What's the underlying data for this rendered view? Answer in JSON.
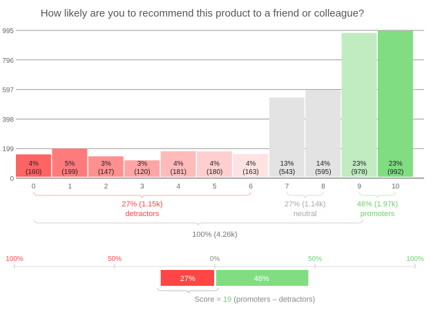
{
  "chart_data": {
    "type": "bar",
    "title": "How likely are you to recommend this product to a friend or colleague?",
    "categories": [
      "0",
      "1",
      "2",
      "3",
      "4",
      "5",
      "6",
      "7",
      "8",
      "9",
      "10"
    ],
    "values": [
      160,
      199,
      147,
      120,
      181,
      180,
      163,
      543,
      595,
      978,
      992
    ],
    "percent_labels": [
      "4%",
      "5%",
      "3%",
      "3%",
      "4%",
      "4%",
      "4%",
      "13%",
      "14%",
      "23%",
      "23%"
    ],
    "count_labels": [
      "(160)",
      "(199)",
      "(147)",
      "(120)",
      "(181)",
      "(180)",
      "(163)",
      "(543)",
      "(595)",
      "(978)",
      "(992)"
    ],
    "colors": [
      "#ff6363",
      "#ff7b7b",
      "#ff9090",
      "#ffa5a5",
      "#ffbaba",
      "#ffcfcf",
      "#ffe3e3",
      "#e3e3e3",
      "#e3e3e3",
      "#c1ebc1",
      "#81dd81"
    ],
    "yticks": [
      "0",
      "199",
      "398",
      "597",
      "796",
      "995"
    ],
    "ylim": [
      0,
      995
    ],
    "grid": true,
    "groups": [
      {
        "value": "27% (1.15k)",
        "name": "detractors",
        "color": "#ff4545",
        "from": 0,
        "to": 6
      },
      {
        "value": "27% (1.14k)",
        "name": "neutral",
        "color": "#a8a8a8",
        "from": 7,
        "to": 8
      },
      {
        "value": "46% (1.97k)",
        "name": "promoters",
        "color": "#6fcf6f",
        "from": 9,
        "to": 10
      }
    ],
    "total": "100% (4.26k)",
    "score_axis": {
      "ticks": [
        "100%",
        "50%",
        "0%",
        "50%",
        "100%"
      ],
      "tick_colors": [
        "#ff4545",
        "#ff4545",
        "#888888",
        "#6fcf6f",
        "#6fcf6f"
      ]
    },
    "score_bars": {
      "detractors": 27,
      "promoters": 46,
      "detractors_label": "27%",
      "promoters_label": "46%",
      "detractors_color": "#ff4545",
      "promoters_color": "#81dd81"
    },
    "score": {
      "prefix": "Score = ",
      "value": "19",
      "suffix": "(promoters  –  detractors)"
    }
  }
}
